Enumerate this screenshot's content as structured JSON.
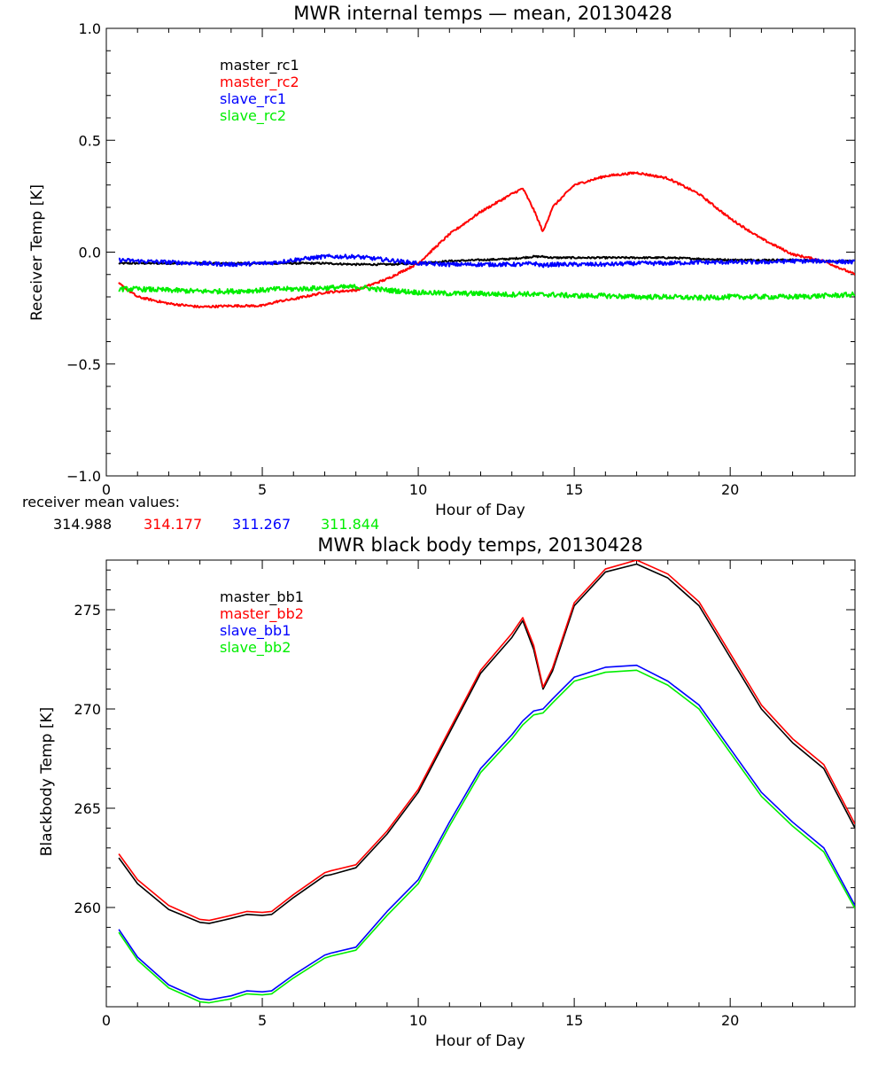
{
  "chart_data": [
    {
      "type": "line",
      "title": "MWR internal temps — mean, 20130428",
      "xlabel": "Hour of Day",
      "ylabel": "Receiver Temp [K]",
      "xlim": [
        0,
        24
      ],
      "ylim": [
        -1.0,
        1.0
      ],
      "x_ticks": [
        0,
        5,
        10,
        15,
        20
      ],
      "y_ticks": [
        -1.0,
        -0.5,
        0.0,
        0.5,
        1.0
      ],
      "y_tick_labels": [
        "−1.0",
        "−0.5",
        "0.0",
        "0.5",
        "1.0"
      ],
      "grid": false,
      "legend_position": "top-left",
      "x": [
        0.4,
        1,
        2,
        3,
        4,
        5,
        5.5,
        6,
        7,
        8,
        9,
        10,
        11,
        12,
        13,
        13.35,
        13.7,
        14.0,
        14.3,
        15,
        16,
        17,
        18,
        19,
        20,
        21,
        22,
        23,
        24
      ],
      "series": [
        {
          "name": "master_rc1",
          "color": "#000000",
          "noise": 0.004,
          "values": [
            -0.05,
            -0.05,
            -0.05,
            -0.05,
            -0.05,
            -0.05,
            -0.05,
            -0.05,
            -0.05,
            -0.055,
            -0.055,
            -0.05,
            -0.04,
            -0.035,
            -0.03,
            -0.025,
            -0.02,
            -0.02,
            -0.025,
            -0.025,
            -0.025,
            -0.025,
            -0.025,
            -0.03,
            -0.035,
            -0.035,
            -0.035,
            -0.04,
            -0.04
          ]
        },
        {
          "name": "master_rc2",
          "color": "#ff0000",
          "noise": 0.005,
          "values": [
            -0.14,
            -0.2,
            -0.23,
            -0.245,
            -0.24,
            -0.24,
            -0.22,
            -0.21,
            -0.18,
            -0.17,
            -0.12,
            -0.05,
            0.08,
            0.18,
            0.26,
            0.285,
            0.19,
            0.09,
            0.2,
            0.3,
            0.34,
            0.355,
            0.33,
            0.26,
            0.15,
            0.06,
            -0.01,
            -0.04,
            -0.1
          ]
        },
        {
          "name": "slave_rc1",
          "color": "#0000ff",
          "noise": 0.009,
          "values": [
            -0.035,
            -0.04,
            -0.045,
            -0.05,
            -0.055,
            -0.05,
            -0.045,
            -0.035,
            -0.02,
            -0.02,
            -0.035,
            -0.05,
            -0.055,
            -0.055,
            -0.055,
            -0.055,
            -0.05,
            -0.06,
            -0.055,
            -0.055,
            -0.055,
            -0.05,
            -0.05,
            -0.045,
            -0.045,
            -0.045,
            -0.04,
            -0.04,
            -0.045
          ]
        },
        {
          "name": "slave_rc2",
          "color": "#00ee00",
          "noise": 0.011,
          "values": [
            -0.165,
            -0.165,
            -0.17,
            -0.175,
            -0.175,
            -0.17,
            -0.165,
            -0.165,
            -0.16,
            -0.155,
            -0.17,
            -0.18,
            -0.185,
            -0.185,
            -0.19,
            -0.185,
            -0.19,
            -0.19,
            -0.19,
            -0.195,
            -0.195,
            -0.2,
            -0.2,
            -0.205,
            -0.2,
            -0.2,
            -0.2,
            -0.195,
            -0.19
          ]
        }
      ],
      "mean_label": "receiver mean values:",
      "mean_values": [
        {
          "text": "314.988",
          "color": "#000000"
        },
        {
          "text": "314.177",
          "color": "#ff0000"
        },
        {
          "text": "311.267",
          "color": "#0000ff"
        },
        {
          "text": "311.844",
          "color": "#00ee00"
        }
      ]
    },
    {
      "type": "line",
      "title": "MWR black body temps, 20130428",
      "xlabel": "Hour of Day",
      "ylabel": "Blackbody Temp [K]",
      "xlim": [
        0,
        24
      ],
      "ylim": [
        255,
        277.5
      ],
      "x_ticks": [
        0,
        5,
        10,
        15,
        20
      ],
      "y_ticks": [
        260,
        265,
        270,
        275
      ],
      "y_tick_labels": [
        "260",
        "265",
        "270",
        "275"
      ],
      "grid": false,
      "legend_position": "top-left",
      "x": [
        0.4,
        1,
        2,
        3,
        3.3,
        4,
        4.5,
        5,
        5.3,
        6,
        7,
        7.2,
        8,
        9,
        10,
        11,
        12,
        13,
        13.35,
        13.7,
        14.0,
        14.3,
        15,
        16,
        17,
        18,
        19,
        20,
        21,
        22,
        23,
        24
      ],
      "series": [
        {
          "name": "master_bb1",
          "color": "#000000",
          "noise": 0,
          "values": [
            262.5,
            261.2,
            259.9,
            259.25,
            259.2,
            259.45,
            259.65,
            259.6,
            259.65,
            260.5,
            261.6,
            261.65,
            262.0,
            263.7,
            265.8,
            268.8,
            271.8,
            273.6,
            274.45,
            273.0,
            271.0,
            271.9,
            275.2,
            276.9,
            277.3,
            276.6,
            275.2,
            272.6,
            270.0,
            268.3,
            267.0,
            264.0
          ]
        },
        {
          "name": "master_bb2",
          "color": "#ff0000",
          "noise": 0,
          "values": [
            262.7,
            261.4,
            260.1,
            259.4,
            259.35,
            259.6,
            259.8,
            259.75,
            259.8,
            260.65,
            261.75,
            261.85,
            262.15,
            263.85,
            265.95,
            268.95,
            271.95,
            273.8,
            274.6,
            273.2,
            271.1,
            272.05,
            275.35,
            277.05,
            277.5,
            276.8,
            275.4,
            272.8,
            270.2,
            268.5,
            267.2,
            264.2
          ]
        },
        {
          "name": "slave_bb1",
          "color": "#0000ff",
          "noise": 0,
          "values": [
            258.9,
            257.5,
            256.1,
            255.4,
            255.35,
            255.55,
            255.8,
            255.75,
            255.8,
            256.6,
            257.6,
            257.7,
            258.0,
            259.8,
            261.4,
            264.3,
            267.0,
            268.7,
            269.4,
            269.9,
            270.0,
            270.5,
            271.6,
            272.1,
            272.2,
            271.4,
            270.2,
            268.0,
            265.8,
            264.3,
            263.0,
            260.1
          ]
        },
        {
          "name": "slave_bb2",
          "color": "#00ee00",
          "noise": 0,
          "values": [
            258.75,
            257.35,
            255.95,
            255.25,
            255.2,
            255.4,
            255.65,
            255.6,
            255.65,
            256.45,
            257.45,
            257.55,
            257.85,
            259.6,
            261.2,
            264.1,
            266.8,
            268.5,
            269.2,
            269.7,
            269.8,
            270.3,
            271.4,
            271.85,
            271.95,
            271.2,
            270.0,
            267.8,
            265.6,
            264.1,
            262.8,
            259.95
          ]
        }
      ]
    }
  ]
}
